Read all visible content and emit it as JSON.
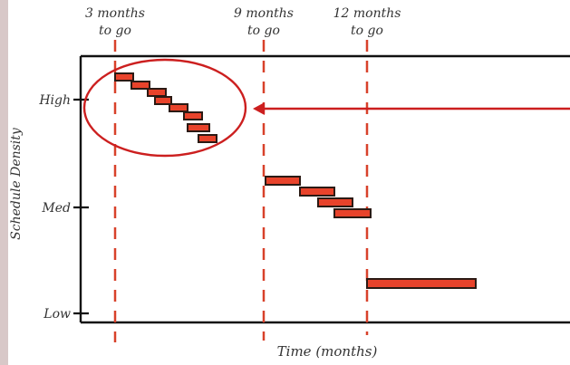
{
  "annotations": {
    "top_labels": [
      {
        "line1": "3 months",
        "line2": "to go"
      },
      {
        "line1": "9 months",
        "line2": "to go"
      },
      {
        "line1": "12 months",
        "line2": "to go"
      }
    ],
    "y_axis_title": "Schedule Density",
    "x_axis_title": "Time (months)",
    "y_ticks": [
      "High",
      "Med",
      "Low"
    ]
  },
  "colors": {
    "background": "#d8c8c8",
    "paper": "#ffffff",
    "bar_fill": "#e8432b",
    "bar_stroke": "#2b1a14",
    "dashed_line": "#d8412a",
    "highlight": "#cc1f1f",
    "axis": "#111111"
  }
}
